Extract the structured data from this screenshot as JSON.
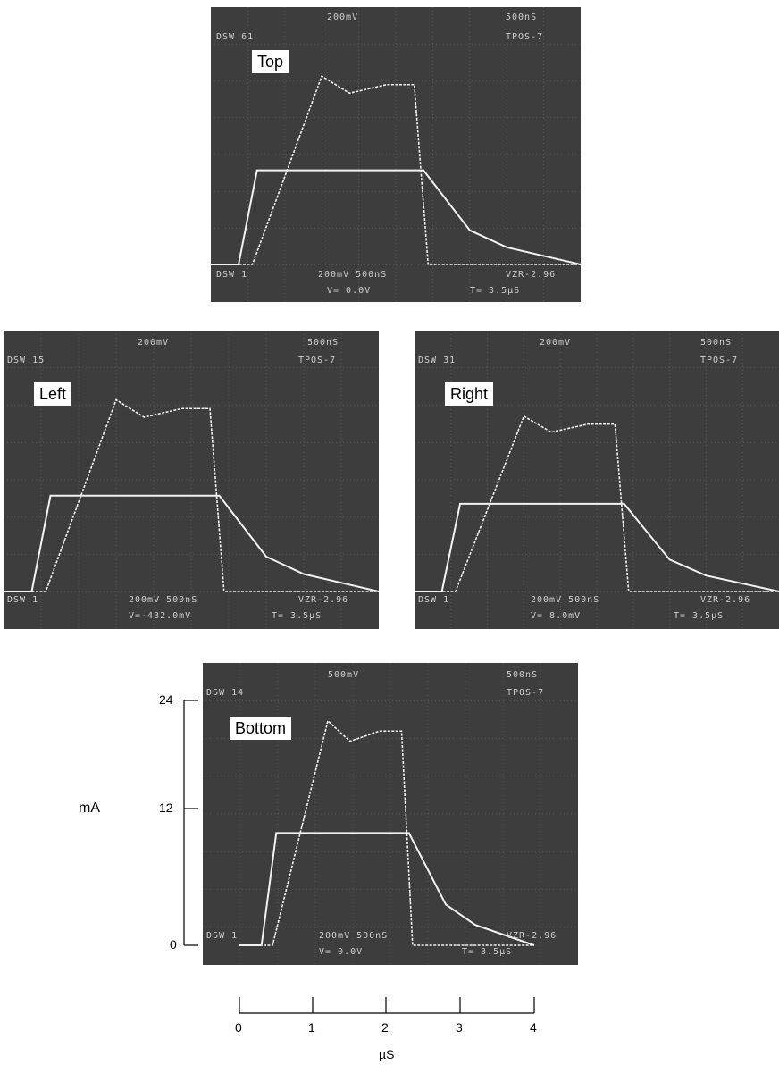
{
  "colors": {
    "screen": "#3d3d3d",
    "grid": "#6a6a6a",
    "trace": "#f2f2f2",
    "osd": "#cfcfcf"
  },
  "panels": {
    "top": {
      "label": "Top",
      "osd": {
        "top_center": "200mV",
        "top_right": "500nS",
        "top_left": "DSW 61",
        "top_right2": "TPOS-7",
        "bottom_left": "DSW 1",
        "bottom_mid": "200mV  500nS",
        "bottom_right": "VZR-2.96",
        "bottom_v": "V= 0.0V",
        "bottom_t": "T= 3.5µS"
      }
    },
    "left": {
      "label": "Left",
      "osd": {
        "top_center": "200mV",
        "top_right": "500nS",
        "top_left": "DSW 15",
        "top_right2": "TPOS-7",
        "bottom_left": "DSW 1",
        "bottom_mid": "200mV  500nS",
        "bottom_right": "VZR-2.96",
        "bottom_v": "V=-432.0mV",
        "bottom_t": "T= 3.5µS"
      }
    },
    "right": {
      "label": "Right",
      "osd": {
        "top_center": "200mV",
        "top_right": "500nS",
        "top_left": "DSW 31",
        "top_right2": "TPOS-7",
        "bottom_left": "DSW 1",
        "bottom_mid": "200mV  500nS",
        "bottom_right": "VZR-2.96",
        "bottom_v": "V= 8.0mV",
        "bottom_t": "T= 3.5µS"
      }
    },
    "bottom": {
      "label": "Bottom",
      "osd": {
        "top_center": "500mV",
        "top_right": "500nS",
        "top_left": "DSW 14",
        "top_right2": "TPOS-7",
        "bottom_left": "DSW 1",
        "bottom_mid": "200mV  500nS",
        "bottom_right": "VZR-2.96",
        "bottom_v": "V= 0.0V",
        "bottom_t": "T= 3.5µS"
      }
    }
  },
  "axes": {
    "ylabel": "mA",
    "xlabel": "µS",
    "yticks": [
      "24",
      "12",
      "0"
    ],
    "xticks": [
      "0",
      "1",
      "2",
      "3",
      "4"
    ]
  },
  "chart_data": [
    {
      "type": "line",
      "panel": "Top",
      "ylabel": "mA",
      "xlabel": "µS",
      "xlim": [
        0,
        4
      ],
      "ylim": [
        0,
        24
      ],
      "series": [
        {
          "x": [
            0,
            0.3,
            0.5,
            0.6,
            2.0,
            2.3,
            2.8,
            3.2,
            4.0
          ],
          "y": [
            0,
            0,
            11,
            11,
            11,
            11,
            4,
            2,
            0
          ]
        },
        {
          "x": [
            0,
            0.45,
            1.2,
            1.5,
            1.9,
            2.2,
            2.35,
            2.5,
            4.0
          ],
          "y": [
            0,
            0,
            22,
            20,
            21,
            21,
            0,
            0,
            0
          ]
        }
      ]
    },
    {
      "type": "line",
      "panel": "Left",
      "ylabel": "mA",
      "xlabel": "µS",
      "xlim": [
        0,
        4
      ],
      "ylim": [
        0,
        24
      ],
      "series": [
        {
          "x": [
            0,
            0.3,
            0.5,
            0.6,
            2.0,
            2.3,
            2.8,
            3.2,
            4.0
          ],
          "y": [
            0,
            0,
            11,
            11,
            11,
            11,
            4,
            2,
            0
          ]
        },
        {
          "x": [
            0,
            0.45,
            1.2,
            1.5,
            1.9,
            2.2,
            2.35,
            2.5,
            4.0
          ],
          "y": [
            0,
            0,
            22,
            20,
            21,
            21,
            0,
            0,
            0
          ]
        }
      ]
    },
    {
      "type": "line",
      "panel": "Right",
      "ylabel": "mA",
      "xlabel": "µS",
      "xlim": [
        0,
        4
      ],
      "ylim": [
        0,
        24
      ],
      "series": [
        {
          "x": [
            0,
            0.3,
            0.5,
            0.6,
            2.0,
            2.3,
            2.8,
            3.2,
            4.0
          ],
          "y": [
            0,
            0,
            11,
            11,
            11,
            11,
            4,
            2,
            0
          ]
        },
        {
          "x": [
            0,
            0.45,
            1.2,
            1.5,
            1.9,
            2.2,
            2.35,
            2.5,
            4.0
          ],
          "y": [
            0,
            0,
            22,
            20,
            21,
            21,
            0,
            0,
            0
          ]
        }
      ]
    },
    {
      "type": "line",
      "panel": "Bottom",
      "ylabel": "mA",
      "xlabel": "µS",
      "xlim": [
        0,
        4
      ],
      "ylim": [
        0,
        24
      ],
      "series": [
        {
          "x": [
            0,
            0.3,
            0.5,
            0.6,
            2.0,
            2.3,
            2.8,
            3.2,
            4.0
          ],
          "y": [
            0,
            0,
            11,
            11,
            11,
            11,
            4,
            2,
            0
          ]
        },
        {
          "x": [
            0,
            0.45,
            1.2,
            1.5,
            1.9,
            2.2,
            2.35,
            2.5,
            4.0
          ],
          "y": [
            0,
            0,
            22,
            20,
            21,
            21,
            0,
            0,
            0
          ]
        }
      ]
    }
  ]
}
